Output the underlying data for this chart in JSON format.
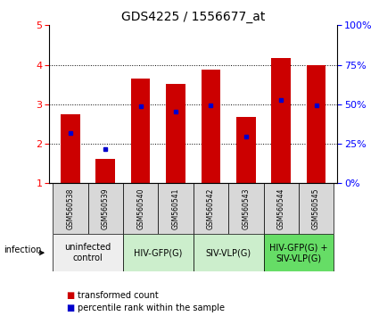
{
  "title": "GDS4225 / 1556677_at",
  "samples": [
    "GSM560538",
    "GSM560539",
    "GSM560540",
    "GSM560541",
    "GSM560542",
    "GSM560543",
    "GSM560544",
    "GSM560545"
  ],
  "bar_values": [
    2.75,
    1.62,
    3.65,
    3.52,
    3.88,
    2.68,
    4.17,
    4.0
  ],
  "percentile_values": [
    2.27,
    1.87,
    2.95,
    2.82,
    2.97,
    2.18,
    3.12,
    2.98
  ],
  "ylim_left": [
    1,
    5
  ],
  "ylim_right": [
    0,
    100
  ],
  "yticks_left": [
    1,
    2,
    3,
    4,
    5
  ],
  "yticks_right": [
    0,
    25,
    50,
    75,
    100
  ],
  "bar_color": "#cc0000",
  "dot_color": "#0000cc",
  "bar_width": 0.55,
  "group_info": [
    {
      "start": 0,
      "end": 1,
      "label": "uninfected\ncontrol",
      "color": "#eeeeee"
    },
    {
      "start": 2,
      "end": 3,
      "label": "HIV-GFP(G)",
      "color": "#cceecc"
    },
    {
      "start": 4,
      "end": 5,
      "label": "SIV-VLP(G)",
      "color": "#cceecc"
    },
    {
      "start": 6,
      "end": 7,
      "label": "HIV-GFP(G) +\nSIV-VLP(G)",
      "color": "#66dd66"
    }
  ],
  "infection_label": "infection",
  "legend_items": [
    {
      "label": "transformed count",
      "color": "#cc0000"
    },
    {
      "label": "percentile rank within the sample",
      "color": "#0000cc"
    }
  ],
  "sample_bg_color": "#d8d8d8",
  "title_fontsize": 10,
  "tick_fontsize": 8,
  "sample_fontsize": 5.5,
  "group_fontsize": 7,
  "legend_fontsize": 7
}
